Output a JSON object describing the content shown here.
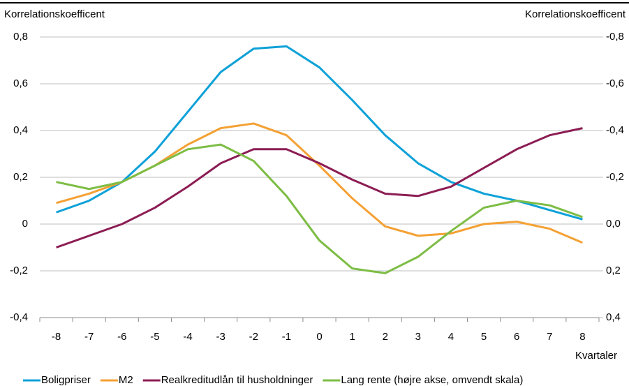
{
  "chart_data": {
    "type": "line",
    "y_label": "Korrelationskoefficent",
    "y2_label": "Korrelationskoefficent",
    "x_label": "Kvartaler",
    "categories": [
      "-8",
      "-7",
      "-6",
      "-5",
      "-4",
      "-3",
      "-2",
      "-1",
      "0",
      "1",
      "2",
      "3",
      "4",
      "5",
      "6",
      "7",
      "8"
    ],
    "ylim": [
      -0.4,
      0.8
    ],
    "yticks": [
      {
        "value": -0.4,
        "label": "-0,4"
      },
      {
        "value": -0.2,
        "label": "-0,2"
      },
      0,
      {
        "value": 0.2,
        "label": "0,2"
      },
      {
        "value": 0.4,
        "label": "0,4"
      },
      {
        "value": 0.6,
        "label": "0,6"
      },
      {
        "value": 0.8,
        "label": "0,8"
      }
    ],
    "y2lim": [
      0.4,
      -0.8
    ],
    "y2ticks": [
      {
        "value": 0.4,
        "label": "0,4"
      },
      {
        "value": 0.2,
        "label": "0,2"
      },
      {
        "value": 0,
        "label": "0,0"
      },
      {
        "value": -0.2,
        "label": "-0,2"
      },
      {
        "value": -0.4,
        "label": "-0,4"
      },
      {
        "value": -0.6,
        "label": "-0,6"
      },
      {
        "value": -0.8,
        "label": "-0,8"
      }
    ],
    "grid": true,
    "series": [
      {
        "name": "Boligpriser",
        "color": "#0ea1d8",
        "values": [
          0.05,
          0.1,
          0.18,
          0.31,
          0.48,
          0.65,
          0.75,
          0.76,
          0.67,
          0.53,
          0.38,
          0.26,
          0.18,
          0.13,
          0.1,
          0.06,
          0.02
        ]
      },
      {
        "name": "M2",
        "color": "#f4a134",
        "values": [
          0.09,
          0.13,
          0.18,
          0.25,
          0.34,
          0.41,
          0.43,
          0.38,
          0.25,
          0.11,
          -0.01,
          -0.05,
          -0.04,
          0.0,
          0.01,
          -0.02,
          -0.08
        ]
      },
      {
        "name": "Realkreditudlån til husholdninger",
        "color": "#8c1d54",
        "values": [
          -0.1,
          -0.05,
          0.0,
          0.07,
          0.16,
          0.26,
          0.32,
          0.32,
          0.26,
          0.19,
          0.13,
          0.12,
          0.16,
          0.24,
          0.32,
          0.38,
          0.41
        ]
      },
      {
        "name": "Lang rente (højre akse, omvendt skala)",
        "color": "#7dbd45",
        "axis": "y2",
        "values": [
          -0.18,
          -0.15,
          -0.18,
          -0.25,
          -0.32,
          -0.34,
          -0.27,
          -0.12,
          0.07,
          0.19,
          0.21,
          0.14,
          0.03,
          -0.07,
          -0.1,
          -0.08,
          -0.03
        ]
      }
    ]
  }
}
